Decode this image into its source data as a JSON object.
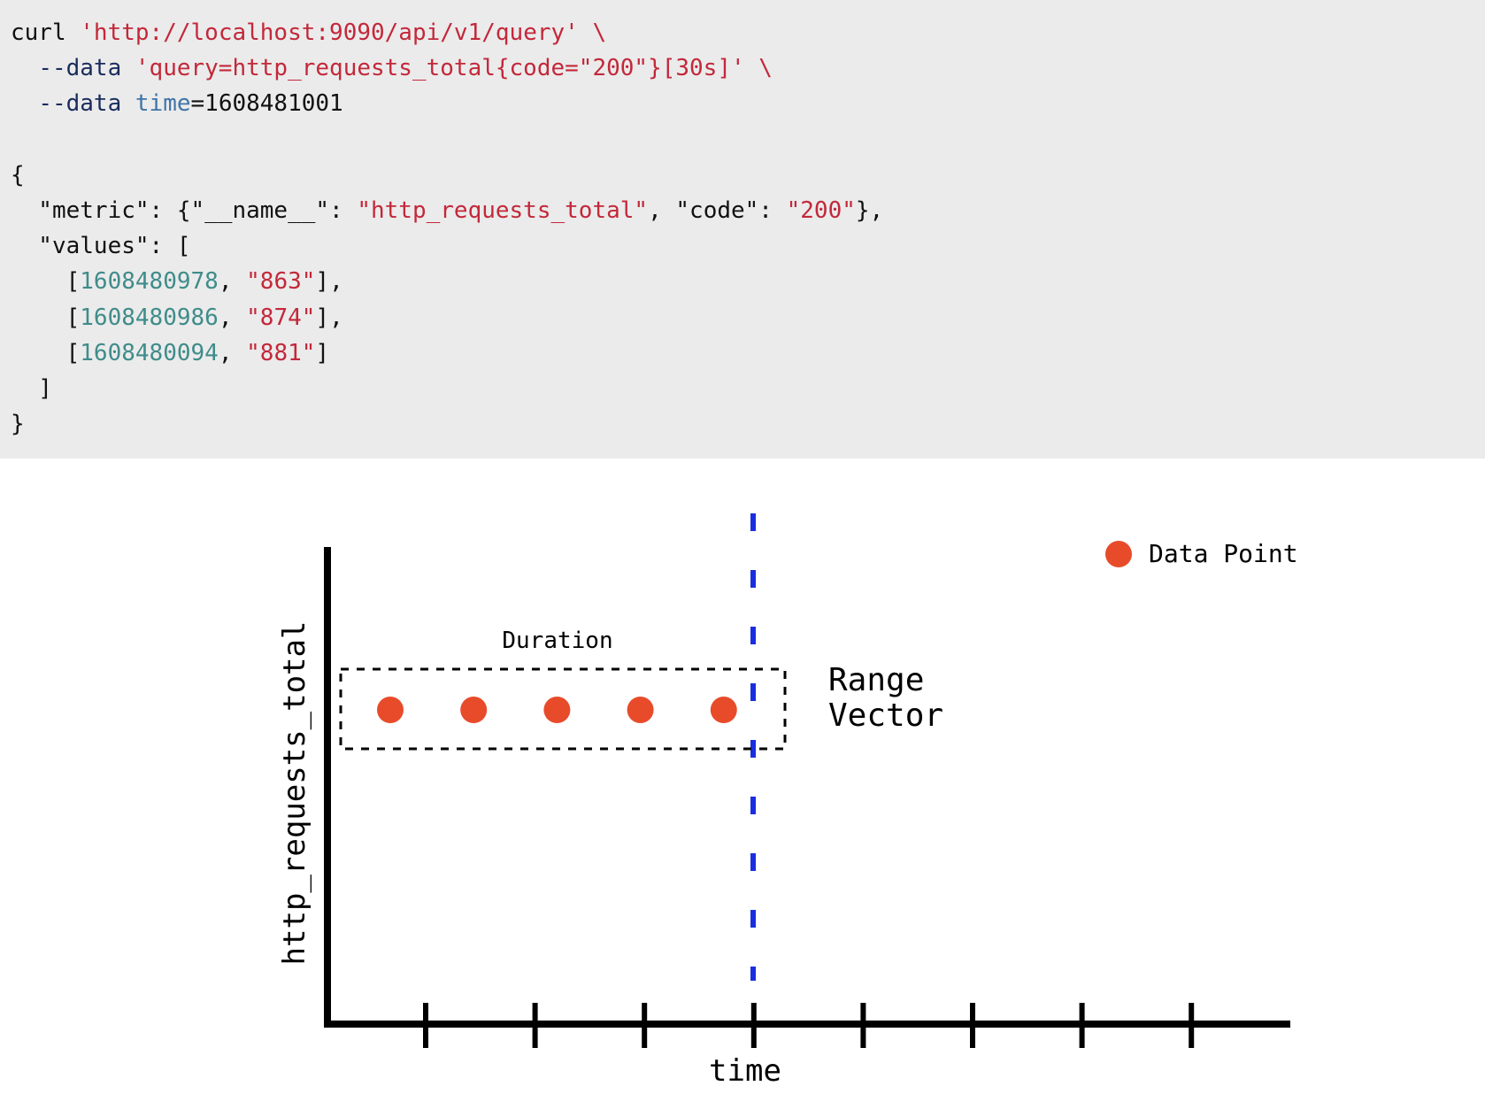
{
  "code": {
    "lines": [
      [
        {
          "t": "curl ",
          "c": "plain"
        },
        {
          "t": "'http://localhost:9090/api/v1/query'",
          "c": "str"
        },
        {
          "t": " \\",
          "c": "str"
        }
      ],
      [
        {
          "t": "  ",
          "c": "plain"
        },
        {
          "t": "--data",
          "c": "flag"
        },
        {
          "t": " ",
          "c": "plain"
        },
        {
          "t": "'query=http_requests_total{code=\"200\"}[30s]'",
          "c": "str"
        },
        {
          "t": " \\",
          "c": "str"
        }
      ],
      [
        {
          "t": "  ",
          "c": "plain"
        },
        {
          "t": "--data",
          "c": "flag"
        },
        {
          "t": " ",
          "c": "plain"
        },
        {
          "t": "time",
          "c": "key"
        },
        {
          "t": "=1608481001",
          "c": "plain"
        }
      ],
      [],
      [
        {
          "t": "{",
          "c": "plain"
        }
      ],
      [
        {
          "t": "  \"metric\": {\"__name__\": ",
          "c": "plain"
        },
        {
          "t": "\"http_requests_total\"",
          "c": "str"
        },
        {
          "t": ", \"code\": ",
          "c": "plain"
        },
        {
          "t": "\"200\"",
          "c": "str"
        },
        {
          "t": "},",
          "c": "plain"
        }
      ],
      [
        {
          "t": "  \"values\": [",
          "c": "plain"
        }
      ],
      [
        {
          "t": "    [",
          "c": "plain"
        },
        {
          "t": "1608480978",
          "c": "num"
        },
        {
          "t": ", ",
          "c": "plain"
        },
        {
          "t": "\"863\"",
          "c": "str"
        },
        {
          "t": "],",
          "c": "plain"
        }
      ],
      [
        {
          "t": "    [",
          "c": "plain"
        },
        {
          "t": "1608480986",
          "c": "num"
        },
        {
          "t": ", ",
          "c": "plain"
        },
        {
          "t": "\"874\"",
          "c": "str"
        },
        {
          "t": "],",
          "c": "plain"
        }
      ],
      [
        {
          "t": "    [",
          "c": "plain"
        },
        {
          "t": "1608480094",
          "c": "num"
        },
        {
          "t": ", ",
          "c": "plain"
        },
        {
          "t": "\"881\"",
          "c": "str"
        },
        {
          "t": "]",
          "c": "plain"
        }
      ],
      [
        {
          "t": "  ]",
          "c": "plain"
        }
      ],
      [
        {
          "t": "}",
          "c": "plain"
        }
      ]
    ]
  },
  "diagram": {
    "y_axis_label": "http_requests_total",
    "x_axis_label": "time",
    "legend_label": "Data Point",
    "duration_label": "Duration",
    "range_vector_line1": "Range",
    "range_vector_line2": "Vector",
    "data_point_count": 5,
    "x_tick_count": 8,
    "colors": {
      "point": "#e84b2a",
      "evaluation_line": "#1a2ee0",
      "axis": "#000000",
      "code_background": "#ebebeb",
      "string": "#c3283a",
      "number": "#3f8c8a",
      "flag": "#1a2c5c",
      "key": "#3f74a8"
    }
  }
}
